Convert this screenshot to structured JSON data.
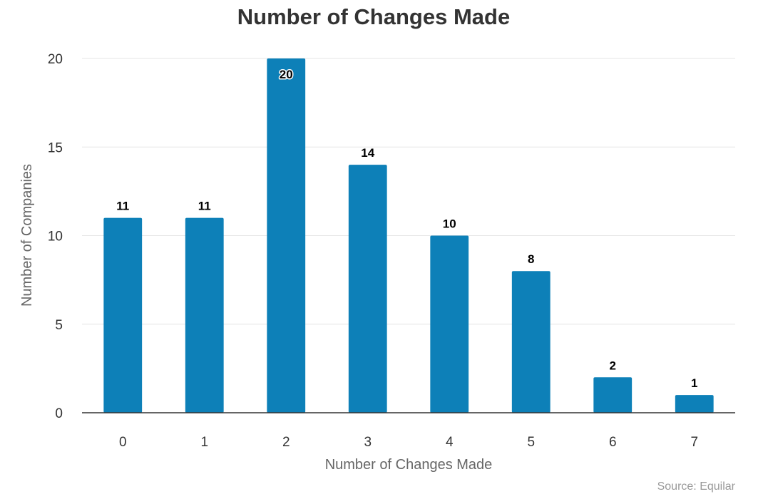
{
  "chart_data": {
    "type": "bar",
    "title": "Number of Changes Made",
    "xlabel": "Number of Changes Made",
    "ylabel": "Number of Companies",
    "categories": [
      "0",
      "1",
      "2",
      "3",
      "4",
      "5",
      "6",
      "7"
    ],
    "values": [
      11,
      11,
      20,
      14,
      10,
      8,
      2,
      1
    ],
    "data_labels": [
      "11",
      "11",
      "20",
      "14",
      "10",
      "8",
      "2",
      "1"
    ],
    "yticks": [
      "0",
      "5",
      "10",
      "15",
      "20"
    ],
    "ylim": [
      0,
      20
    ],
    "grid": true,
    "legend": "none",
    "bar_color": "#0d80b8",
    "source": "Source: Equilar"
  }
}
